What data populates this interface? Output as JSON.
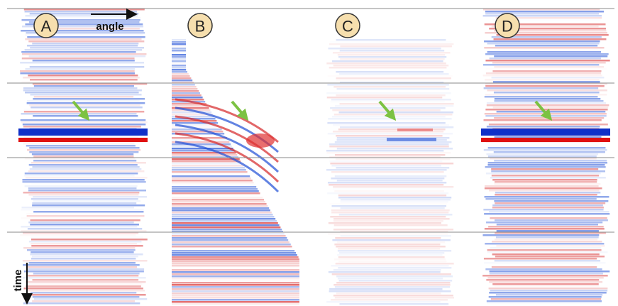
{
  "panels": [
    {
      "label": "A"
    },
    {
      "label": "B"
    },
    {
      "label": "C"
    },
    {
      "label": "D"
    }
  ],
  "axis_labels": {
    "x": "angle",
    "y": "time"
  }
}
